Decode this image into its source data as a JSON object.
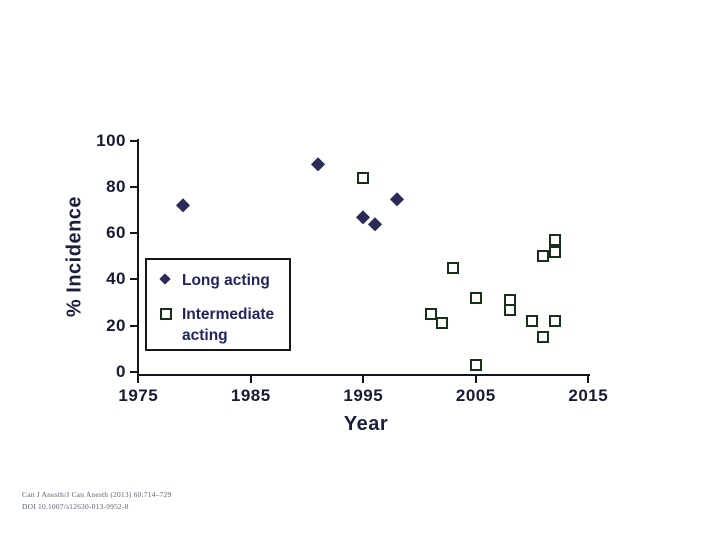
{
  "chart_data": {
    "type": "scatter",
    "title": "",
    "xlabel": "Year",
    "ylabel": "% Incidence",
    "xlim": [
      1975,
      2015
    ],
    "ylim": [
      0,
      100
    ],
    "x_ticks": [
      1975,
      1985,
      1995,
      2005,
      2015
    ],
    "y_ticks": [
      0,
      20,
      40,
      60,
      80,
      100
    ],
    "grid": false,
    "legend_position": "inside-left",
    "series": [
      {
        "name": "Long acting",
        "marker": "filled-diamond",
        "color": "#2b2b59",
        "points": [
          {
            "x": 1979,
            "y": 72
          },
          {
            "x": 1991,
            "y": 90
          },
          {
            "x": 1995,
            "y": 67
          },
          {
            "x": 1996,
            "y": 64
          },
          {
            "x": 1998,
            "y": 75
          }
        ]
      },
      {
        "name": "Intermediate acting",
        "marker": "open-square",
        "color": "#16321a",
        "points": [
          {
            "x": 1995,
            "y": 84
          },
          {
            "x": 2001,
            "y": 25
          },
          {
            "x": 2002,
            "y": 21
          },
          {
            "x": 2003,
            "y": 45
          },
          {
            "x": 2005,
            "y": 32
          },
          {
            "x": 2005,
            "y": 3
          },
          {
            "x": 2008,
            "y": 31
          },
          {
            "x": 2008,
            "y": 27
          },
          {
            "x": 2010,
            "y": 22
          },
          {
            "x": 2011,
            "y": 50
          },
          {
            "x": 2011,
            "y": 15
          },
          {
            "x": 2012,
            "y": 57
          },
          {
            "x": 2012,
            "y": 52
          },
          {
            "x": 2012,
            "y": 22
          }
        ]
      }
    ]
  },
  "citation": {
    "line1": "Can J Anesth/J Can Anesth (2013) 60:714–729",
    "line2": "DOI 10.1007/s12630-013-9952-8"
  },
  "colors": {
    "background": "#ffffff",
    "axis": "#15151f",
    "tick_text": "#171c33",
    "long_acting": "#2b2b59",
    "intermediate_acting": "#16321a",
    "legend_text": "#20255c",
    "citation_text": "#5a6275"
  }
}
